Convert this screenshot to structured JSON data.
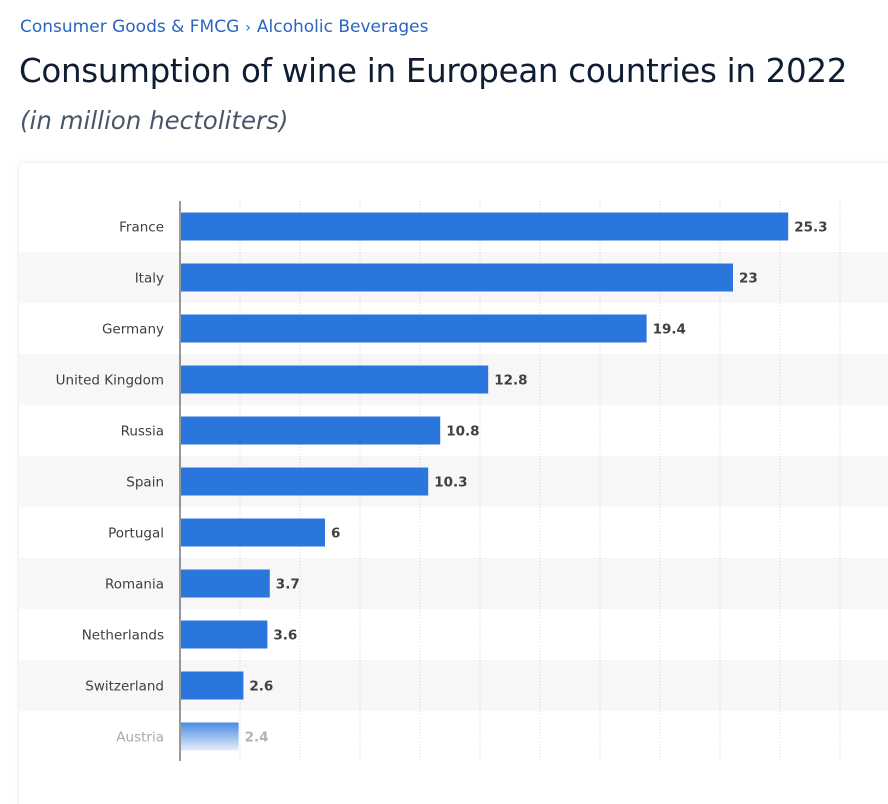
{
  "breadcrumb": {
    "items": [
      "Consumer Goods & FMCG",
      "Alcoholic Beverages"
    ],
    "separator": "›"
  },
  "colors": {
    "bar": "#2a76dc",
    "link": "#2a65c0",
    "title": "#0f1d33",
    "row_stripe": "#f7f7f7",
    "grid": "#d4d4d4"
  },
  "chart_data": {
    "type": "bar",
    "orientation": "horizontal",
    "title": "Consumption of wine in European countries in 2022",
    "subtitle": "(in million hectoliters)",
    "categories": [
      "France",
      "Italy",
      "Germany",
      "United Kingdom",
      "Russia",
      "Spain",
      "Portugal",
      "Romania",
      "Netherlands",
      "Switzerland",
      "Austria"
    ],
    "values": [
      25.3,
      23,
      19.4,
      12.8,
      10.8,
      10.3,
      6,
      3.7,
      3.6,
      2.6,
      2.4
    ],
    "value_labels": [
      "25.3",
      "23",
      "19.4",
      "12.8",
      "10.8",
      "10.3",
      "6",
      "3.7",
      "3.6",
      "2.6",
      "2.4"
    ],
    "xlim": [
      0,
      27.5
    ],
    "grid": true,
    "grid_step": 2.5,
    "legend": "none",
    "faded_last_row": true
  }
}
